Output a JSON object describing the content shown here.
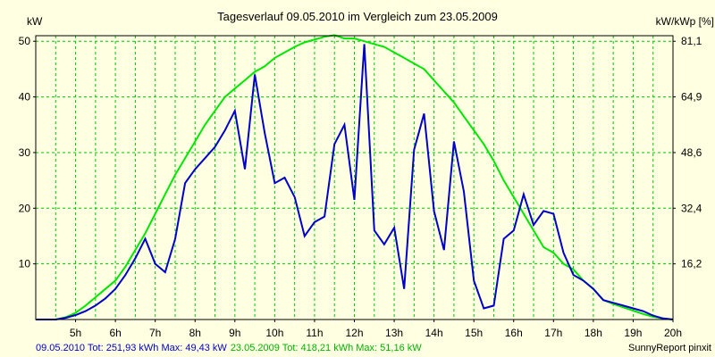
{
  "chart_data": {
    "type": "line",
    "title": "Tagesverlauf 09.05.2010 im Vergleich zum 23.05.2009",
    "ylabel_left": "kW",
    "ylabel_right": "kW/kWp [%]",
    "ylim": [
      0,
      51
    ],
    "y_ticks": [
      10,
      20,
      30,
      40,
      50
    ],
    "y_ticks_right": [
      "16,2",
      "32,4",
      "48,6",
      "64,9",
      "81,1"
    ],
    "xlim": [
      4.0,
      20.0
    ],
    "x_ticks": [
      5,
      6,
      7,
      8,
      9,
      10,
      11,
      12,
      13,
      14,
      15,
      16,
      17,
      18,
      19,
      20
    ],
    "x_tick_labels": [
      "5h",
      "6h",
      "7h",
      "8h",
      "9h",
      "10h",
      "11h",
      "12h",
      "13h",
      "14h",
      "15h",
      "16h",
      "17h",
      "18h",
      "19h",
      "20h"
    ],
    "grid": true,
    "colors": {
      "background": "#ffffe1",
      "grid": "#00c800",
      "series_2010": "#0000c8",
      "series_2009": "#00e600"
    },
    "series": [
      {
        "x": [
          4.0,
          4.25,
          4.5,
          4.75,
          5.0,
          5.25,
          5.5,
          5.75,
          6.0,
          6.25,
          6.5,
          6.75,
          7.0,
          7.25,
          7.5,
          7.75,
          8.0,
          8.25,
          8.5,
          8.75,
          9.0,
          9.25,
          9.5,
          9.75,
          10.0,
          10.25,
          10.5,
          10.75,
          11.0,
          11.25,
          11.5,
          11.75,
          12.0,
          12.25,
          12.5,
          12.75,
          13.0,
          13.25,
          13.5,
          13.75,
          14.0,
          14.25,
          14.5,
          14.75,
          15.0,
          15.25,
          15.5,
          15.75,
          16.0,
          16.25,
          16.5,
          16.75,
          17.0,
          17.25,
          17.5,
          17.75,
          18.0,
          18.25,
          18.5,
          18.75,
          19.0,
          19.25,
          19.5,
          19.75,
          20.0
        ],
        "values": [
          0,
          0,
          0,
          0.3,
          0.8,
          1.5,
          2.5,
          3.8,
          5.5,
          8.0,
          11.0,
          14.5,
          10.0,
          8.5,
          14.5,
          24.5,
          27.0,
          29.0,
          31.0,
          34.0,
          37.5,
          27.0,
          44.0,
          33.5,
          24.5,
          25.5,
          22.0,
          15.0,
          17.5,
          18.5,
          31.5,
          35.0,
          21.5,
          49.5,
          16.0,
          13.5,
          16.5,
          5.5,
          30.5,
          37.0,
          19.5,
          12.5,
          32.0,
          23.0,
          7.0,
          2.0,
          2.5,
          14.5,
          16.0,
          22.5,
          17.0,
          19.5,
          19.0,
          12.0,
          8.0,
          7.0,
          5.5,
          3.5,
          3.0,
          2.5,
          2.0,
          1.5,
          0.7,
          0.2,
          0
        ]
      },
      {
        "x": [
          4.0,
          4.25,
          4.5,
          4.75,
          5.0,
          5.25,
          5.5,
          5.75,
          6.0,
          6.25,
          6.5,
          6.75,
          7.0,
          7.25,
          7.5,
          7.75,
          8.0,
          8.25,
          8.5,
          8.75,
          9.0,
          9.25,
          9.5,
          9.75,
          10.0,
          10.25,
          10.5,
          10.75,
          11.0,
          11.25,
          11.5,
          11.75,
          12.0,
          12.25,
          12.5,
          12.75,
          13.0,
          13.25,
          13.5,
          13.75,
          14.0,
          14.25,
          14.5,
          14.75,
          15.0,
          15.25,
          15.5,
          15.75,
          16.0,
          16.25,
          16.5,
          16.75,
          17.0,
          17.25,
          17.5,
          17.75,
          18.0,
          18.25,
          18.5,
          18.75,
          19.0,
          19.25,
          19.5,
          19.75,
          20.0
        ],
        "values": [
          0,
          0,
          0,
          0.4,
          1.2,
          2.5,
          4.0,
          5.5,
          7.0,
          9.5,
          12.5,
          15.5,
          19.0,
          22.5,
          26.0,
          29.0,
          32.0,
          35.0,
          37.5,
          40.0,
          41.5,
          43.0,
          44.5,
          45.5,
          47.0,
          48.0,
          49.0,
          49.8,
          50.3,
          50.8,
          51.1,
          50.5,
          50.5,
          50.0,
          49.5,
          49.0,
          48.0,
          47.0,
          46.0,
          45.0,
          43.0,
          41.0,
          39.0,
          36.5,
          34.0,
          31.5,
          28.5,
          25.0,
          22.0,
          19.0,
          16.0,
          13.0,
          12.0,
          10.0,
          9.0,
          7.0,
          5.5,
          3.5,
          2.8,
          2.2,
          1.6,
          1.0,
          0.5,
          0.2,
          0
        ]
      }
    ],
    "footer": {
      "s2010_label": "09.05.2010 Tot: 251,93 kWh Max: 49,43 kW",
      "s2009_label": "23.05.2009 Tot: 418,21 kWh Max: 51,16 kW",
      "brand": "SunnyReport pinxit"
    }
  }
}
